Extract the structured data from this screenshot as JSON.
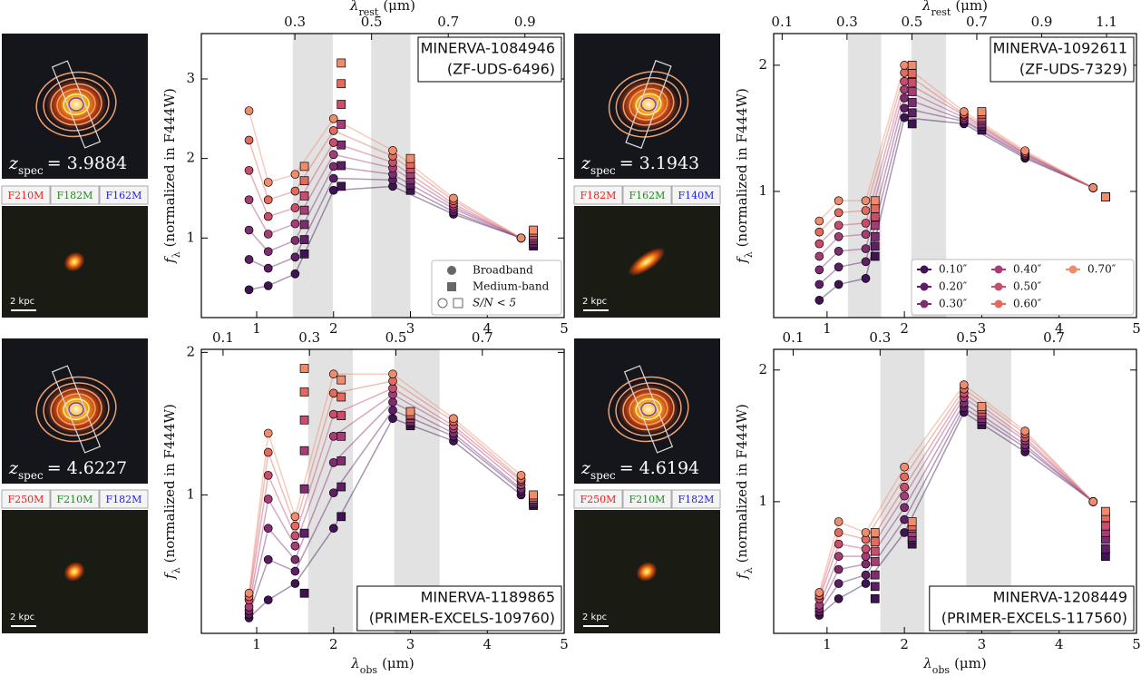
{
  "chart_data": [
    {
      "type": "scatter",
      "y_scale": "linear",
      "title": [
        "MINERVA-1084946",
        "(ZF-UDS-6496)"
      ],
      "title_loc": "upper right",
      "x2label": {
        "main": "λ",
        "sub": "rest",
        "unit": "(μm)"
      },
      "ylabel": {
        "main": "f",
        "sub": "λ",
        "unit": "(normalized in F444W)"
      },
      "xlim": [
        0.28,
        5
      ],
      "xticks": [
        1,
        2,
        3,
        4,
        5
      ],
      "x2lim": [
        0.0561,
        1.0023
      ],
      "x2ticks": [
        0.3,
        0.5,
        0.7,
        0.9
      ],
      "ylim": [
        0,
        3.57
      ],
      "yticks": [
        1,
        2,
        3
      ],
      "shaded_regions": [
        [
          1.47,
          1.99
        ],
        [
          2.49,
          3.0
        ]
      ],
      "marker_legend": [
        "Broadband",
        "Medium-band",
        "S/N < 5"
      ],
      "legend_loc": "lower right",
      "cutouts": {
        "z_symbol": "z",
        "z_sub": "spec",
        "z_value": "= 3.9884",
        "filters": [
          "F210M",
          "F182M",
          "F162M"
        ],
        "filter_colors": [
          "#e8201c",
          "#1e8a1e",
          "#2020e0"
        ],
        "scale_bar": "2 kpc"
      },
      "x": [
        0.9,
        1.15,
        1.5,
        2.0,
        2.77,
        3.56,
        4.44
      ],
      "x_medium": [
        1.62,
        2.1,
        3.0,
        4.6
      ],
      "series": [
        {
          "color": "#3f1354",
          "values": [
            0.35,
            0.4,
            0.55,
            1.6,
            1.65,
            1.3,
            1.0
          ],
          "medium_values": [
            0.8,
            1.65,
            1.6,
            0.9
          ]
        },
        {
          "color": "#5e1f66",
          "values": [
            0.73,
            0.62,
            0.76,
            1.75,
            1.73,
            1.33,
            1.0
          ],
          "medium_values": [
            0.98,
            1.91,
            1.67,
            0.93
          ]
        },
        {
          "color": "#7f2d71",
          "values": [
            1.1,
            0.83,
            0.97,
            1.9,
            1.8,
            1.37,
            1.0
          ],
          "medium_values": [
            1.17,
            2.17,
            1.73,
            0.97
          ]
        },
        {
          "color": "#a63d76",
          "values": [
            1.48,
            1.05,
            1.18,
            2.05,
            1.88,
            1.4,
            1.0
          ],
          "medium_values": [
            1.35,
            2.43,
            1.8,
            1.0
          ]
        },
        {
          "color": "#c94d6c",
          "values": [
            1.85,
            1.27,
            1.38,
            2.2,
            1.95,
            1.43,
            1.0
          ],
          "medium_values": [
            1.53,
            2.68,
            1.87,
            1.03
          ]
        },
        {
          "color": "#e36a5e",
          "values": [
            2.23,
            1.48,
            1.59,
            2.35,
            2.03,
            1.47,
            1.0
          ],
          "medium_values": [
            1.72,
            2.94,
            1.93,
            1.07
          ]
        },
        {
          "color": "#f08c6e",
          "values": [
            2.6,
            1.7,
            1.8,
            2.5,
            2.1,
            1.5,
            1.0
          ],
          "medium_values": [
            1.9,
            3.2,
            2.0,
            1.1
          ]
        }
      ]
    },
    {
      "type": "scatter",
      "y_scale": "log",
      "title": [
        "MINERVA-1092611",
        "(ZF-UDS-7329)"
      ],
      "title_loc": "upper right",
      "x2label": {
        "main": "λ",
        "sub": "rest",
        "unit": "(μm)"
      },
      "ylabel": {
        "main": "f",
        "sub": "λ",
        "unit": "(normalized in F444W)"
      },
      "xlim": [
        0.31,
        5
      ],
      "xticks": [
        1,
        2,
        3,
        4,
        5
      ],
      "x2lim": [
        0.0739,
        1.1921
      ],
      "x2ticks": [
        0.1,
        0.3,
        0.5,
        0.7,
        0.9,
        1.1
      ],
      "ylim": [
        0.5,
        2.38
      ],
      "yticks": [
        1,
        2
      ],
      "shaded_regions": [
        [
          1.27,
          1.7
        ],
        [
          2.09,
          2.54
        ]
      ],
      "legend_loc": "lower right",
      "cutouts": {
        "z_symbol": "z",
        "z_sub": "spec",
        "z_value": "= 3.1943",
        "filters": [
          "F182M",
          "F162M",
          "F140M"
        ],
        "filter_colors": [
          "#e8201c",
          "#1e8a1e",
          "#2020e0"
        ],
        "scale_bar": "2 kpc"
      },
      "x": [
        0.9,
        1.15,
        1.5,
        2.0,
        2.77,
        3.56,
        4.44
      ],
      "x_medium": [
        1.62,
        2.1,
        3.0,
        4.6
      ],
      "series": [
        {
          "name": "0.10″",
          "color": "#3f1354",
          "values": [
            0.55,
            0.6,
            0.62,
            1.5,
            1.45,
            1.2,
            1.02
          ],
          "medium_values": [
            0.7,
            1.45,
            1.4,
            0.97
          ]
        },
        {
          "name": "0.20″",
          "color": "#5e1f66",
          "values": [
            0.6,
            0.66,
            0.68,
            1.58,
            1.47,
            1.21,
            1.02
          ],
          "medium_values": [
            0.74,
            1.54,
            1.43,
            0.97
          ]
        },
        {
          "name": "0.30″",
          "color": "#7f2d71",
          "values": [
            0.65,
            0.72,
            0.73,
            1.67,
            1.48,
            1.22,
            1.02
          ],
          "medium_values": [
            0.78,
            1.63,
            1.45,
            0.97
          ]
        },
        {
          "name": "0.40″",
          "color": "#a63d76",
          "values": [
            0.7,
            0.78,
            0.79,
            1.75,
            1.5,
            1.23,
            1.02
          ],
          "medium_values": [
            0.83,
            1.73,
            1.48,
            0.97
          ]
        },
        {
          "name": "0.50″",
          "color": "#c94d6c",
          "values": [
            0.75,
            0.83,
            0.84,
            1.83,
            1.52,
            1.23,
            1.02
          ],
          "medium_values": [
            0.87,
            1.82,
            1.5,
            0.97
          ]
        },
        {
          "name": "0.60″",
          "color": "#e36a5e",
          "values": [
            0.8,
            0.89,
            0.9,
            1.92,
            1.53,
            1.24,
            1.02
          ],
          "medium_values": [
            0.91,
            1.91,
            1.53,
            0.97
          ]
        },
        {
          "name": "0.70″",
          "color": "#f08c6e",
          "values": [
            0.85,
            0.95,
            0.95,
            2.0,
            1.55,
            1.25,
            1.02
          ],
          "medium_values": [
            0.95,
            2.0,
            1.55,
            0.97
          ]
        }
      ]
    },
    {
      "type": "scatter",
      "y_scale": "log",
      "title": [
        "MINERVA-1189865",
        "(PRIMER-EXCELS-109760)"
      ],
      "title_loc": "lower right",
      "xlabel": {
        "main": "λ",
        "sub": "obs",
        "unit": "(μm)"
      },
      "ylabel": {
        "main": "f",
        "sub": "λ",
        "unit": "(normalized in F444W)"
      },
      "xlim": [
        0.28,
        5
      ],
      "xticks": [
        1,
        2,
        3,
        4,
        5
      ],
      "x2lim": [
        0.0498,
        0.8893
      ],
      "x2ticks": [
        0.1,
        0.3,
        0.5,
        0.7
      ],
      "ylim": [
        0.51,
        2.03
      ],
      "yticks": [
        1,
        2
      ],
      "shaded_regions": [
        [
          1.67,
          2.25
        ],
        [
          2.79,
          3.38
        ]
      ],
      "cutouts": {
        "z_symbol": "z",
        "z_sub": "spec",
        "z_value": "= 4.6227",
        "filters": [
          "F250M",
          "F210M",
          "F182M"
        ],
        "filter_colors": [
          "#e8201c",
          "#1e8a1e",
          "#2020e0"
        ],
        "scale_bar": "2 kpc"
      },
      "x": [
        0.9,
        1.15,
        1.5,
        2.0,
        2.77,
        3.56,
        4.44
      ],
      "x_medium": [
        1.62,
        2.1,
        3.0,
        4.6
      ],
      "series": [
        {
          "color": "#3f1354",
          "values": [
            0.55,
            0.6,
            0.65,
            0.85,
            1.45,
            1.3,
            1.0
          ],
          "medium_values": [
            0.62,
            0.9,
            1.4,
            0.95
          ]
        },
        {
          "color": "#5e1f66",
          "values": [
            0.56,
            0.73,
            0.69,
            1.01,
            1.51,
            1.33,
            1.02
          ],
          "medium_values": [
            0.83,
            1.04,
            1.42,
            0.96
          ]
        },
        {
          "color": "#7f2d71",
          "values": [
            0.57,
            0.85,
            0.73,
            1.17,
            1.57,
            1.35,
            1.03
          ],
          "medium_values": [
            1.03,
            1.18,
            1.43,
            0.97
          ]
        },
        {
          "color": "#a63d76",
          "values": [
            0.58,
            0.98,
            0.78,
            1.33,
            1.63,
            1.38,
            1.05
          ],
          "medium_values": [
            1.24,
            1.33,
            1.45,
            0.98
          ]
        },
        {
          "color": "#c94d6c",
          "values": [
            0.6,
            1.1,
            0.82,
            1.48,
            1.68,
            1.4,
            1.07
          ],
          "medium_values": [
            1.44,
            1.47,
            1.47,
            0.98
          ]
        },
        {
          "color": "#e36a5e",
          "values": [
            0.61,
            1.23,
            0.86,
            1.64,
            1.74,
            1.43,
            1.08
          ],
          "medium_values": [
            1.65,
            1.61,
            1.48,
            0.99
          ]
        },
        {
          "color": "#f08c6e",
          "values": [
            0.62,
            1.35,
            0.9,
            1.8,
            1.8,
            1.45,
            1.1
          ],
          "medium_values": [
            1.85,
            1.75,
            1.5,
            1.0
          ]
        }
      ]
    },
    {
      "type": "scatter",
      "y_scale": "log",
      "title": [
        "MINERVA-1208449",
        "(PRIMER-EXCELS-117560)"
      ],
      "title_loc": "lower right",
      "xlabel": {
        "main": "λ",
        "sub": "obs",
        "unit": "(μm)"
      },
      "ylabel": {
        "main": "f",
        "sub": "λ",
        "unit": "(normalized in F444W)"
      },
      "xlim": [
        0.31,
        5
      ],
      "xticks": [
        1,
        2,
        3,
        4,
        5
      ],
      "x2lim": [
        0.0552,
        0.8898
      ],
      "x2ticks": [
        0.1,
        0.3,
        0.5,
        0.7
      ],
      "ylim": [
        0.5,
        2.23
      ],
      "yticks": [
        1,
        2
      ],
      "shaded_regions": [
        [
          1.69,
          2.26
        ],
        [
          2.8,
          3.38
        ]
      ],
      "cutouts": {
        "z_symbol": "z",
        "z_sub": "spec",
        "z_value": "= 4.6194",
        "filters": [
          "F250M",
          "F210M",
          "F182M"
        ],
        "filter_colors": [
          "#e8201c",
          "#1e8a1e",
          "#2020e0"
        ],
        "scale_bar": "2 kpc"
      },
      "x": [
        0.9,
        1.15,
        1.5,
        2.0,
        2.77,
        3.56,
        4.44
      ],
      "x_medium": [
        1.62,
        2.1,
        3.0,
        4.6
      ],
      "series": [
        {
          "color": "#3f1354",
          "values": [
            0.55,
            0.6,
            0.65,
            0.85,
            1.6,
            1.3,
            1.0
          ],
          "medium_values": [
            0.6,
            0.8,
            1.5,
            0.75
          ]
        },
        {
          "color": "#5e1f66",
          "values": [
            0.56,
            0.65,
            0.68,
            0.91,
            1.64,
            1.33,
            1.0
          ],
          "medium_values": [
            0.64,
            0.82,
            1.53,
            0.78
          ]
        },
        {
          "color": "#7f2d71",
          "values": [
            0.57,
            0.7,
            0.72,
            0.97,
            1.68,
            1.35,
            1.0
          ],
          "medium_values": [
            0.68,
            0.83,
            1.55,
            0.82
          ]
        },
        {
          "color": "#a63d76",
          "values": [
            0.58,
            0.75,
            0.75,
            1.03,
            1.73,
            1.38,
            1.0
          ],
          "medium_values": [
            0.73,
            0.85,
            1.58,
            0.85
          ]
        },
        {
          "color": "#c94d6c",
          "values": [
            0.6,
            0.8,
            0.78,
            1.08,
            1.77,
            1.4,
            1.0
          ],
          "medium_values": [
            0.77,
            0.87,
            1.6,
            0.88
          ]
        },
        {
          "color": "#e36a5e",
          "values": [
            0.61,
            0.85,
            0.82,
            1.14,
            1.81,
            1.43,
            1.0
          ],
          "medium_values": [
            0.81,
            0.88,
            1.63,
            0.92
          ]
        },
        {
          "color": "#f08c6e",
          "values": [
            0.62,
            0.9,
            0.85,
            1.2,
            1.85,
            1.45,
            1.0
          ],
          "medium_values": [
            0.85,
            0.9,
            1.65,
            0.95
          ]
        }
      ]
    }
  ]
}
